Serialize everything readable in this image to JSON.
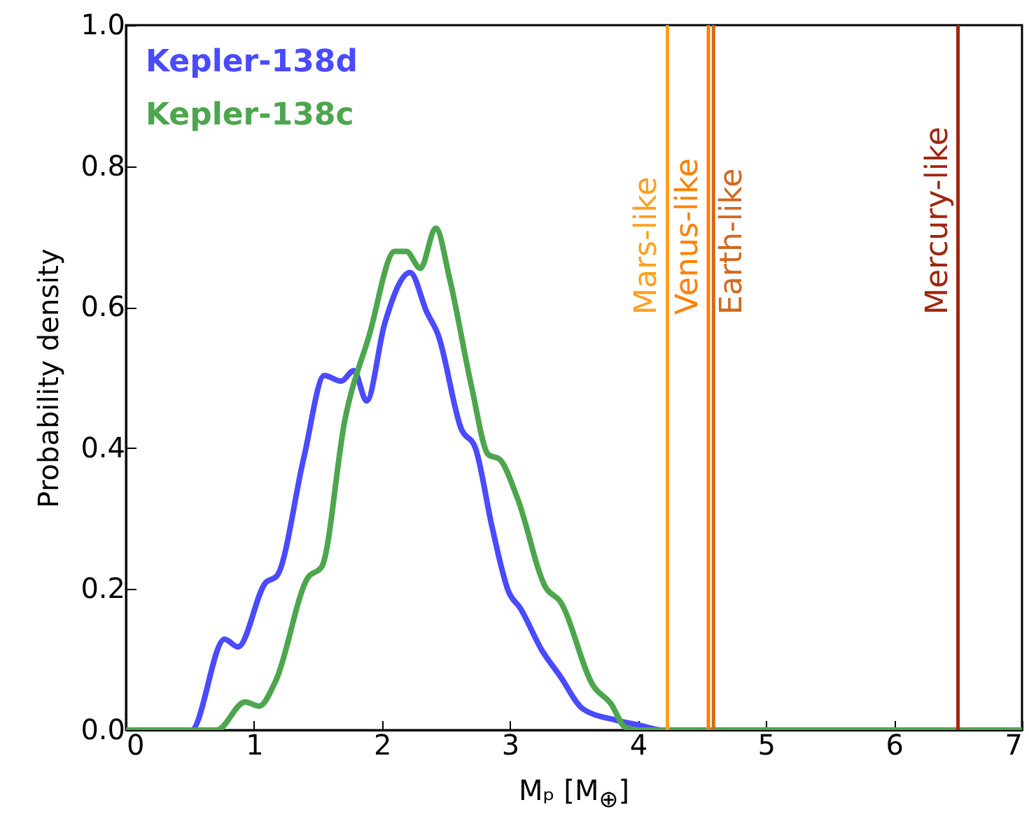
{
  "chart_data": {
    "type": "line",
    "xlabel": "Mₚ [M$_{⊕}$]",
    "ylabel": "Probability density",
    "xlim": [
      0,
      7
    ],
    "ylim": [
      0,
      1.0
    ],
    "xticks": [
      0,
      1,
      2,
      3,
      4,
      5,
      6,
      7
    ],
    "yticks": [
      {
        "value": 0,
        "label": "0.0"
      },
      {
        "value": 0.2,
        "label": "0.2"
      },
      {
        "value": 0.4,
        "label": "0.4"
      },
      {
        "value": 0.6,
        "label": "0.6"
      },
      {
        "value": 0.8,
        "label": "0.8"
      },
      {
        "value": 1.0,
        "label": "1.0"
      }
    ],
    "series": [
      {
        "name": "Kepler-138d",
        "color": "#4a4aff",
        "x": [
          0,
          0.51,
          0.77,
          0.875,
          1.09,
          1.18,
          1.39,
          1.55,
          1.68,
          1.78,
          1.88,
          2.02,
          2.22,
          2.35,
          2.44,
          2.62,
          2.73,
          2.86,
          2.99,
          3.08,
          3.25,
          3.39,
          3.57,
          3.83,
          4.01,
          4.19,
          7
        ],
        "values": [
          0,
          0,
          0.129,
          0.118,
          0.209,
          0.219,
          0.387,
          0.503,
          0.495,
          0.51,
          0.467,
          0.576,
          0.649,
          0.593,
          0.56,
          0.427,
          0.4,
          0.288,
          0.196,
          0.173,
          0.113,
          0.077,
          0.03,
          0.014,
          0.007,
          0,
          0
        ]
      },
      {
        "name": "Kepler-138c",
        "color": "#4da64d",
        "x": [
          0,
          0.71,
          0.93,
          1.04,
          1.17,
          1.42,
          1.53,
          1.71,
          1.9,
          2.1,
          2.19,
          2.3,
          2.42,
          2.53,
          2.7,
          2.83,
          2.92,
          3.06,
          3.28,
          3.39,
          3.65,
          3.79,
          3.9,
          4.0,
          7
        ],
        "values": [
          0,
          0,
          0.04,
          0.034,
          0.07,
          0.216,
          0.232,
          0.44,
          0.56,
          0.679,
          0.679,
          0.655,
          0.712,
          0.639,
          0.487,
          0.391,
          0.384,
          0.328,
          0.202,
          0.183,
          0.063,
          0.037,
          0.004,
          0,
          0
        ]
      }
    ],
    "ref_lines": [
      {
        "axis": "x",
        "value": 4.23,
        "label": "Mars-like",
        "color": "#ffa020"
      },
      {
        "axis": "x",
        "value": 4.55,
        "label": "Venus-like",
        "color": "#ff8000"
      },
      {
        "axis": "x",
        "value": 4.59,
        "label": "Earth-like",
        "color": "#d2691e"
      },
      {
        "axis": "x",
        "value": 6.5,
        "label": "Mercury-like",
        "color": "#a0260f"
      }
    ]
  }
}
